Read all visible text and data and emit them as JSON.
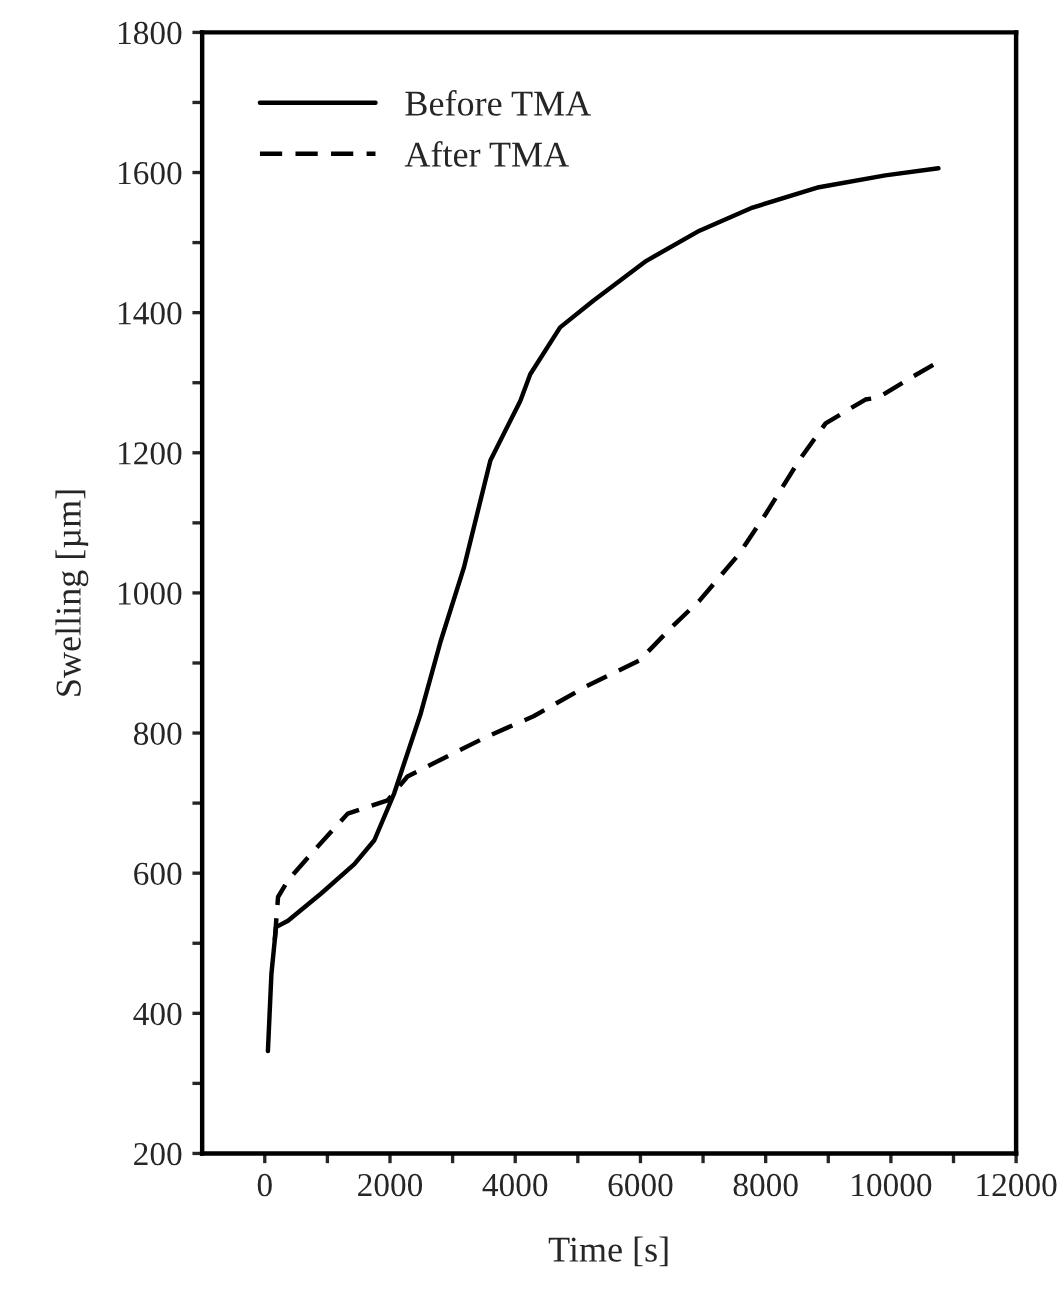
{
  "chart_data": {
    "type": "line",
    "xlabel": "Time [s]",
    "ylabel": "Swelling [µm]",
    "xlim": [
      -1000,
      12000
    ],
    "ylim": [
      200,
      1800
    ],
    "xticks": [
      0,
      {
        "value": 1000,
        "label": null
      },
      2000,
      {
        "value": 3000,
        "label": null
      },
      4000,
      {
        "value": 5000,
        "label": null
      },
      6000,
      {
        "value": 7000,
        "label": null
      },
      8000,
      {
        "value": 9000,
        "label": null
      },
      10000,
      {
        "value": 11000,
        "label": null
      },
      12000
    ],
    "yticks": [
      200,
      {
        "value": 300,
        "label": null
      },
      400,
      {
        "value": 500,
        "label": null
      },
      600,
      {
        "value": 700,
        "label": null
      },
      800,
      {
        "value": 900,
        "label": null
      },
      1000,
      {
        "value": 1100,
        "label": null
      },
      1200,
      {
        "value": 1300,
        "label": null
      },
      1400,
      {
        "value": 1500,
        "label": null
      },
      1600,
      {
        "value": 1700,
        "label": null
      },
      1800
    ],
    "legend": "top left",
    "grid": false,
    "series": [
      {
        "name": "Before TMA",
        "color": "#000000",
        "line_style": "solid",
        "x": [
          50,
          106,
          180,
          371,
          900,
          1431,
          1750,
          2067,
          2491,
          2809,
          3180,
          3603,
          4081,
          4240,
          4717,
          5247,
          6095,
          6943,
          7791,
          8851,
          9911,
          10759
        ],
        "values": [
          346,
          456,
          523,
          532,
          571,
          613,
          647,
          714,
          828,
          931,
          1036,
          1189,
          1274,
          1312,
          1379,
          1417,
          1474,
          1517,
          1550,
          1579,
          1596,
          1606
        ]
      },
      {
        "name": "After TMA",
        "color": "#000000",
        "line_style": "dashed",
        "x": [
          159,
          212,
          371,
          795,
          1325,
          1961,
          2279,
          2809,
          3551,
          4293,
          5141,
          5989,
          6519,
          6943,
          7579,
          8003,
          8533,
          8957,
          9593,
          9805,
          10335,
          10706
        ],
        "values": [
          504,
          566,
          590,
          633,
          685,
          704,
          738,
          762,
          795,
          824,
          867,
          904,
          953,
          989,
          1056,
          1113,
          1189,
          1242,
          1276,
          1279,
          1308,
          1327
        ]
      }
    ]
  }
}
